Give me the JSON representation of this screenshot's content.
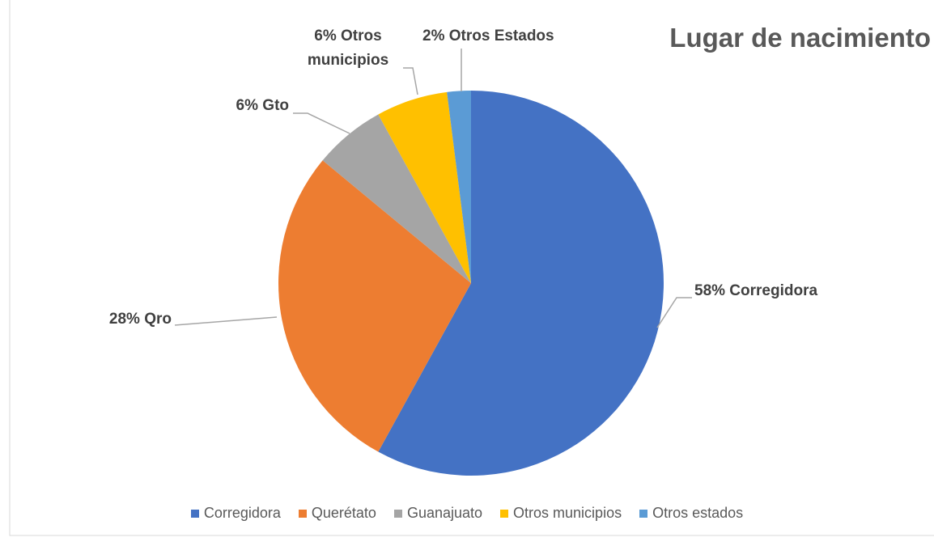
{
  "chart_data": {
    "type": "pie",
    "title": "Lugar de nacimiento",
    "categories": [
      "Corregidora",
      "Querétato",
      "Guanajuato",
      "Otros municipios",
      "Otros estados"
    ],
    "values": [
      58,
      28,
      6,
      6,
      2
    ],
    "value_labels": [
      "58% Corregidora",
      "28% Qro",
      "6% Gto",
      "6% Otros municipios",
      "2% Otros Estados"
    ],
    "colors": [
      "#4472c4",
      "#ed7d31",
      "#a5a5a5",
      "#ffc000",
      "#5b9bd5"
    ],
    "legend": "bottom"
  }
}
